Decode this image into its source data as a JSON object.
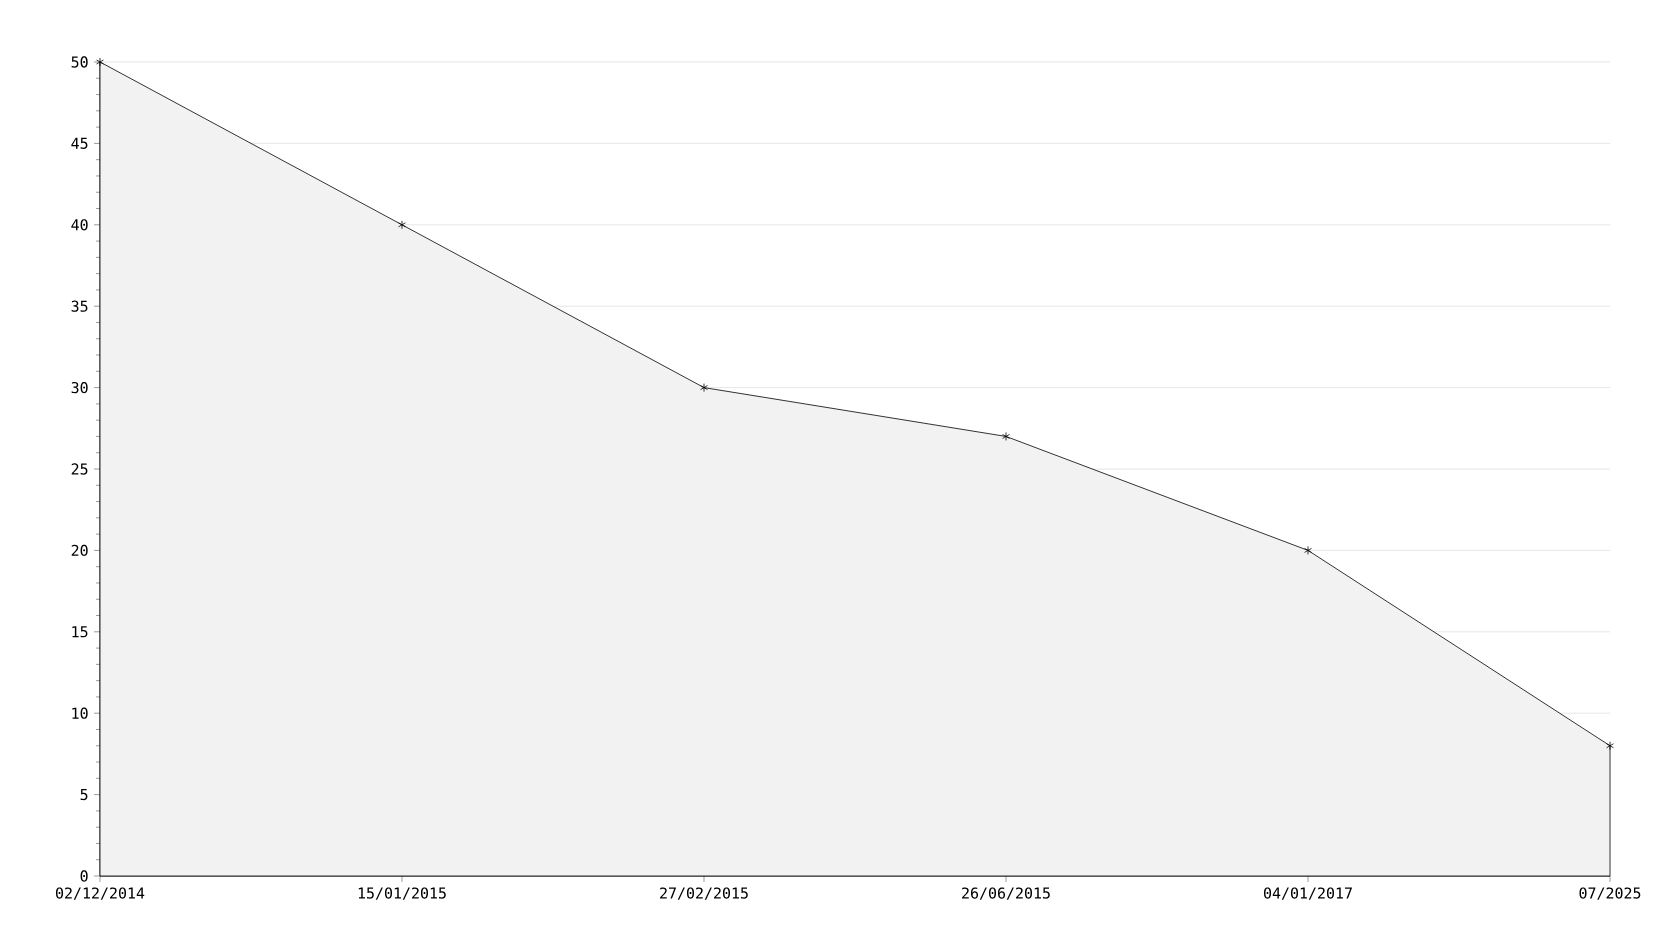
{
  "chart_data": {
    "type": "area",
    "categories": [
      "02/12/2014",
      "15/01/2015",
      "27/02/2015",
      "26/06/2015",
      "04/01/2017",
      "07/2025"
    ],
    "values": [
      50,
      40,
      30,
      27,
      20,
      8
    ],
    "color": "#000000",
    "ylim": [
      0,
      50
    ],
    "yticks": [
      0,
      5,
      10,
      15,
      20,
      25,
      30,
      35,
      40,
      45,
      50
    ],
    "grid": "y",
    "marker": "cross"
  }
}
